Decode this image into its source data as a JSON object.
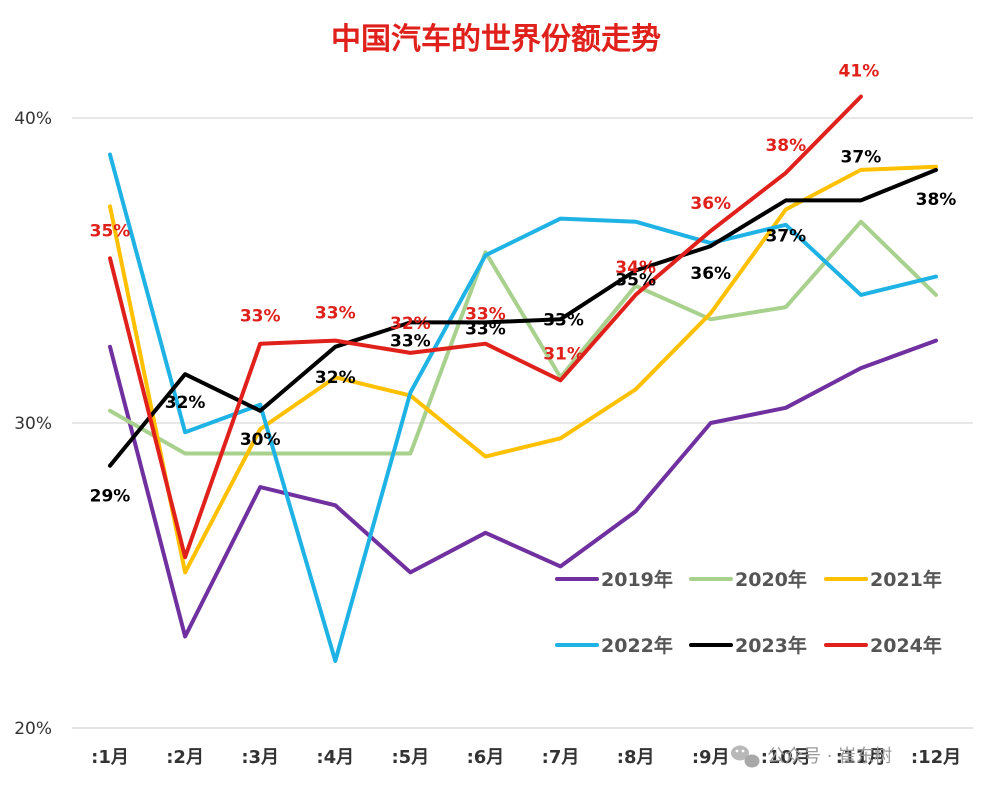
{
  "chart_data": {
    "type": "line",
    "title": "中国汽车的世界份额走势",
    "categories": [
      ":1月",
      ":2月",
      ":3月",
      ":4月",
      ":5月",
      ":6月",
      ":7月",
      ":8月",
      ":9月",
      ":10月",
      ":11月",
      ":12月"
    ],
    "ylim": [
      20,
      42
    ],
    "yticks": [
      {
        "value": 20,
        "label": "20%"
      },
      {
        "value": 30,
        "label": "30%"
      },
      {
        "value": 40,
        "label": "40%"
      }
    ],
    "grid": true,
    "legend_position": "lower-right, inside plot, two rows",
    "series": [
      {
        "name": "2019年",
        "color": "#7030a0",
        "values": [
          32.5,
          23.0,
          27.9,
          27.3,
          25.1,
          26.4,
          25.3,
          27.1,
          30.0,
          30.5,
          31.8,
          32.7
        ]
      },
      {
        "name": "2020年",
        "color": "#a9d18e",
        "values": [
          30.4,
          29.0,
          29.0,
          29.0,
          29.0,
          35.6,
          31.5,
          34.5,
          33.4,
          33.8,
          36.6,
          34.2
        ]
      },
      {
        "name": "2021年",
        "color": "#ffc000",
        "values": [
          37.1,
          25.1,
          29.8,
          31.5,
          30.9,
          28.9,
          29.5,
          31.1,
          33.6,
          37.0,
          38.3,
          38.4
        ]
      },
      {
        "name": "2022年",
        "color": "#1fb2e4",
        "values": [
          38.8,
          29.7,
          30.6,
          22.2,
          31.0,
          35.5,
          36.7,
          36.6,
          35.9,
          36.5,
          34.2,
          34.8
        ]
      },
      {
        "name": "2023年",
        "color": "#000000",
        "values": [
          28.6,
          31.6,
          30.4,
          32.5,
          33.3,
          33.3,
          33.4,
          35.0,
          35.8,
          37.3,
          37.3,
          38.3
        ]
      },
      {
        "name": "2024年",
        "color": "#e0201b",
        "values": [
          35.4,
          25.6,
          32.6,
          32.7,
          32.3,
          32.6,
          31.4,
          34.2,
          36.3,
          38.2,
          40.7,
          null
        ]
      }
    ],
    "data_labels": [
      {
        "series": "2024年",
        "index": 0,
        "text": "35%"
      },
      {
        "series": "2024年",
        "index": 2,
        "text": "33%"
      },
      {
        "series": "2024年",
        "index": 3,
        "text": "33%"
      },
      {
        "series": "2024年",
        "index": 4,
        "text": "32%"
      },
      {
        "series": "2024年",
        "index": 5,
        "text": "33%"
      },
      {
        "series": "2024年",
        "index": 6,
        "text": "31%"
      },
      {
        "series": "2024年",
        "index": 7,
        "text": "34%"
      },
      {
        "series": "2024年",
        "index": 8,
        "text": "36%"
      },
      {
        "series": "2024年",
        "index": 9,
        "text": "38%"
      },
      {
        "series": "2024年",
        "index": 10,
        "text": "41%"
      },
      {
        "series": "2023年",
        "index": 0,
        "text": "29%"
      },
      {
        "series": "2023年",
        "index": 1,
        "text": "32%"
      },
      {
        "series": "2023年",
        "index": 2,
        "text": "30%"
      },
      {
        "series": "2023年",
        "index": 3,
        "text": "32%"
      },
      {
        "series": "2023年",
        "index": 4,
        "text": "33%"
      },
      {
        "series": "2023年",
        "index": 5,
        "text": "33%"
      },
      {
        "series": "2023年",
        "index": 6,
        "text": "33%"
      },
      {
        "series": "2023年",
        "index": 7,
        "text": "35%"
      },
      {
        "series": "2023年",
        "index": 8,
        "text": "36%"
      },
      {
        "series": "2023年",
        "index": 9,
        "text": "37%"
      },
      {
        "series": "2023年",
        "index": 10,
        "text": "37%"
      },
      {
        "series": "2023年",
        "index": 11,
        "text": "38%"
      }
    ]
  },
  "watermark": {
    "text": "公众号 · 崔东树",
    "icon": "wechat-icon"
  }
}
